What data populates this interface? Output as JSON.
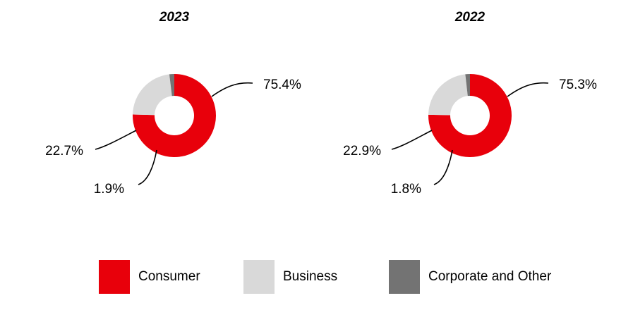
{
  "chart_data": [
    {
      "type": "donut",
      "title": "2023",
      "categories": [
        "Consumer",
        "Business",
        "Corporate and Other"
      ],
      "values": [
        75.4,
        22.7,
        1.9
      ],
      "labels": [
        "75.4%",
        "22.7%",
        "1.9%"
      ],
      "colors": [
        "#e8000b",
        "#d9d9d9",
        "#737373"
      ]
    },
    {
      "type": "donut",
      "title": "2022",
      "categories": [
        "Consumer",
        "Business",
        "Corporate and Other"
      ],
      "values": [
        75.3,
        22.9,
        1.8
      ],
      "labels": [
        "75.3%",
        "22.9%",
        "1.8%"
      ],
      "colors": [
        "#e8000b",
        "#d9d9d9",
        "#737373"
      ]
    }
  ],
  "legend": {
    "placement": "bottom",
    "items": [
      {
        "label": "Consumer",
        "color": "#e8000b"
      },
      {
        "label": "Business",
        "color": "#d9d9d9"
      },
      {
        "label": "Corporate and Other",
        "color": "#737373"
      }
    ]
  }
}
